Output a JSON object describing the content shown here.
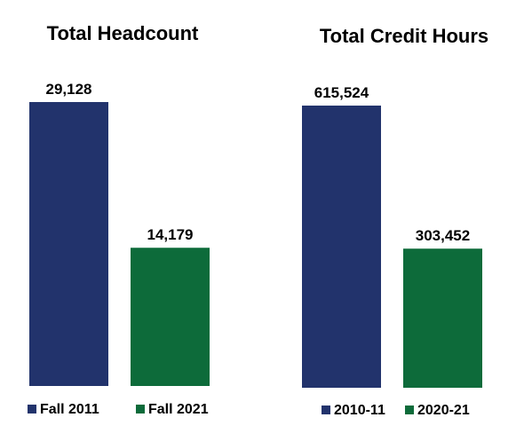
{
  "colors": {
    "series_a": "#22336c",
    "series_b": "#0d6b3a"
  },
  "chart_data": [
    {
      "type": "bar",
      "title": "Total Headcount",
      "categories": [
        "Fall 2011",
        "Fall 2021"
      ],
      "series": [
        {
          "name": "Fall 2011",
          "values": [
            29128,
            null
          ]
        },
        {
          "name": "Fall 2021",
          "values": [
            null,
            14179
          ]
        }
      ],
      "values": [
        29128,
        14179
      ],
      "value_labels": [
        "29,128",
        "14,179"
      ],
      "legend": [
        "Fall 2011",
        "Fall 2021"
      ],
      "legend_position": "bottom",
      "xlabel": "",
      "ylabel": "",
      "ylim": [
        0,
        29128
      ],
      "grid": false,
      "axes_visible": false
    },
    {
      "type": "bar",
      "title": "Total Credit Hours",
      "categories": [
        "2010-11",
        "2020-21"
      ],
      "series": [
        {
          "name": "2010-11",
          "values": [
            615524,
            null
          ]
        },
        {
          "name": "2020-21",
          "values": [
            null,
            303452
          ]
        }
      ],
      "values": [
        615524,
        303452
      ],
      "value_labels": [
        "615,524",
        "303,452"
      ],
      "legend": [
        "2010-11",
        "2020-21"
      ],
      "legend_position": "bottom",
      "xlabel": "",
      "ylabel": "",
      "ylim": [
        0,
        615524
      ],
      "grid": false,
      "axes_visible": false
    }
  ]
}
